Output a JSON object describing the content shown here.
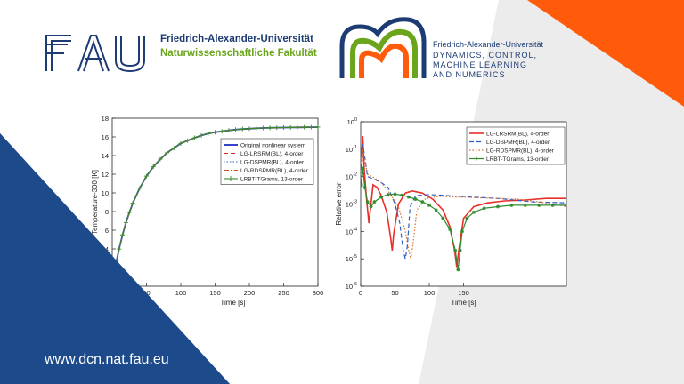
{
  "colors": {
    "navy": "#1d4a8a",
    "orange": "#ff5b0b",
    "grey": "#e9e9ea",
    "fau_blue": "#1d3c73",
    "fau_green": "#6aa51b"
  },
  "header": {
    "fau_logo": "FAU",
    "fau_name": "Friedrich-Alexander-Universität",
    "fau_faculty": "Naturwissenschaftliche Fakultät",
    "dcn_name": "Friedrich-Alexander-Universität",
    "dcn_lines": [
      "DYNAMICS, CONTROL,",
      "MACHINE LEARNING",
      "AND NUMERICS"
    ]
  },
  "footer": {
    "url": "www.dcn.nat.fau.eu"
  },
  "chart_data": [
    {
      "type": "line",
      "xlabel": "Time [s]",
      "ylabel": "Temperature-300 [K]",
      "xlim": [
        0,
        300
      ],
      "ylim": [
        0,
        18
      ],
      "xticks": [
        50,
        100,
        150,
        200,
        250,
        300
      ],
      "yticks": [
        2,
        4,
        6,
        8,
        10,
        12,
        14,
        16,
        18
      ],
      "x": [
        0,
        5,
        10,
        15,
        20,
        25,
        30,
        40,
        50,
        60,
        70,
        80,
        90,
        100,
        110,
        120,
        130,
        140,
        150,
        160,
        170,
        180,
        190,
        200,
        210,
        220,
        230,
        240,
        250,
        260,
        270,
        280,
        290,
        300
      ],
      "series": [
        {
          "name": "Original nonlinear system",
          "color": "#1f2fbf",
          "style": "solid",
          "values": [
            0,
            2.24,
            3.98,
            5.5,
            6.8,
            7.9,
            8.9,
            10.5,
            11.8,
            12.8,
            13.6,
            14.3,
            14.8,
            15.3,
            15.6,
            15.9,
            16.15,
            16.35,
            16.5,
            16.6,
            16.7,
            16.78,
            16.84,
            16.88,
            16.92,
            16.95,
            16.97,
            16.99,
            17.0,
            17.01,
            17.02,
            17.03,
            17.04,
            17.05
          ]
        },
        {
          "name": "LG-LRSRM(BL), 4-order",
          "color": "#e02020",
          "style": "dash",
          "values": [
            0,
            2.24,
            3.98,
            5.5,
            6.8,
            7.9,
            8.9,
            10.5,
            11.8,
            12.8,
            13.6,
            14.3,
            14.8,
            15.3,
            15.6,
            15.9,
            16.15,
            16.35,
            16.5,
            16.6,
            16.7,
            16.78,
            16.84,
            16.88,
            16.92,
            16.95,
            16.97,
            16.99,
            17.0,
            17.01,
            17.02,
            17.03,
            17.04,
            17.05
          ]
        },
        {
          "name": "LG-DSPMR(BL), 4-order",
          "color": "#2a5fc8",
          "style": "dot",
          "values": [
            0,
            2.24,
            3.98,
            5.5,
            6.8,
            7.9,
            8.9,
            10.5,
            11.8,
            12.8,
            13.6,
            14.3,
            14.8,
            15.3,
            15.6,
            15.9,
            16.15,
            16.35,
            16.5,
            16.6,
            16.7,
            16.78,
            16.84,
            16.88,
            16.92,
            16.95,
            16.97,
            16.99,
            17.0,
            17.01,
            17.02,
            17.03,
            17.04,
            17.05
          ]
        },
        {
          "name": "LG-RDSPMR(BL), 4-order",
          "color": "#d0502a",
          "style": "dashdot",
          "values": [
            0,
            2.24,
            3.98,
            5.5,
            6.8,
            7.9,
            8.9,
            10.5,
            11.8,
            12.8,
            13.6,
            14.3,
            14.8,
            15.3,
            15.6,
            15.9,
            16.15,
            16.35,
            16.5,
            16.6,
            16.7,
            16.78,
            16.84,
            16.88,
            16.92,
            16.95,
            16.97,
            16.99,
            17.0,
            17.01,
            17.02,
            17.03,
            17.04,
            17.05
          ]
        },
        {
          "name": "LRBT-TGrams, 13-order",
          "color": "#3a8a2a",
          "style": "plus",
          "values": [
            0,
            2.24,
            3.98,
            5.5,
            6.8,
            7.9,
            8.9,
            10.5,
            11.8,
            12.8,
            13.6,
            14.3,
            14.8,
            15.3,
            15.6,
            15.9,
            16.15,
            16.35,
            16.5,
            16.6,
            16.7,
            16.78,
            16.84,
            16.88,
            16.92,
            16.95,
            16.97,
            16.99,
            17.0,
            17.01,
            17.02,
            17.03,
            17.04,
            17.05
          ]
        }
      ],
      "legend": "top-right",
      "grid": false
    },
    {
      "type": "line",
      "xlabel": "Time [s]",
      "ylabel": "Relative error",
      "yscale": "log",
      "xlim": [
        0,
        300
      ],
      "ylim": [
        1e-06,
        1
      ],
      "xticks": [
        0,
        50,
        100,
        150
      ],
      "yticks": [
        {
          "value": 1e-06,
          "base": "10",
          "exp": "-6"
        },
        {
          "value": 1e-05,
          "base": "10",
          "exp": "-5"
        },
        {
          "value": 0.0001,
          "base": "10",
          "exp": "-4"
        },
        {
          "value": 0.001,
          "base": "10",
          "exp": "-3"
        },
        {
          "value": 0.01,
          "base": "10",
          "exp": "-2"
        },
        {
          "value": 0.1,
          "base": "10",
          "exp": "-1"
        },
        {
          "value": 1,
          "base": "10",
          "exp": "0"
        }
      ],
      "series": [
        {
          "name": "LG-LRSRM(BL), 4-order",
          "color": "#e8302a",
          "style": "solid",
          "x": [
            1,
            3,
            5,
            8,
            12,
            18,
            24,
            30,
            38,
            44,
            46,
            48,
            55,
            65,
            75,
            90,
            105,
            120,
            130,
            137,
            140,
            143,
            150,
            165,
            185,
            210,
            240,
            270,
            300
          ],
          "y": [
            0.05,
            0.3,
            0.02,
            0.002,
            0.0002,
            0.005,
            0.004,
            0.002,
            0.0005,
            5e-05,
            2e-05,
            8e-05,
            0.001,
            0.0025,
            0.003,
            0.0025,
            0.0015,
            0.0006,
            0.00015,
            2e-05,
            5e-06,
            2e-05,
            0.0003,
            0.0008,
            0.0011,
            0.0013,
            0.0014,
            0.0016,
            0.0016
          ]
        },
        {
          "name": "LG-DSPMR(BL), 4-order",
          "color": "#2a5fc8",
          "style": "dash",
          "x": [
            1,
            3,
            6,
            10,
            20,
            30,
            40,
            50,
            57,
            62,
            65,
            68,
            72,
            80,
            100,
            130,
            160,
            200,
            250,
            300
          ],
          "y": [
            0.02,
            0.15,
            0.05,
            0.01,
            0.008,
            0.006,
            0.004,
            0.001,
            0.0002,
            2e-05,
            1e-05,
            3e-05,
            0.0008,
            0.002,
            0.0022,
            0.002,
            0.0018,
            0.0016,
            0.0012,
            0.0011
          ]
        },
        {
          "name": "LG-RDSPMR(BL), 4-order",
          "color": "#d87030",
          "style": "dot",
          "x": [
            1,
            3,
            6,
            10,
            20,
            30,
            40,
            55,
            65,
            70,
            73,
            76,
            82,
            95,
            115,
            140,
            170,
            200,
            230,
            260,
            290,
            300
          ],
          "y": [
            0.01,
            0.1,
            0.04,
            0.012,
            0.009,
            0.006,
            0.003,
            0.0008,
            0.0001,
            2e-05,
            1e-05,
            3e-05,
            0.0006,
            0.0016,
            0.0019,
            0.0018,
            0.0017,
            0.0016,
            0.0015,
            0.0012,
            0.0009,
            0.0008
          ]
        },
        {
          "name": "LRBT-TGrams, 13-order",
          "color": "#2e8b2e",
          "style": "star",
          "x": [
            1,
            3,
            6,
            10,
            15,
            20,
            30,
            40,
            50,
            60,
            70,
            80,
            90,
            100,
            110,
            120,
            130,
            138,
            142,
            145,
            148,
            155,
            165,
            180,
            200,
            220,
            240,
            260,
            280,
            300
          ],
          "y": [
            0.005,
            0.02,
            0.004,
            0.0012,
            0.0008,
            0.0012,
            0.0018,
            0.0022,
            0.0023,
            0.0021,
            0.0018,
            0.0015,
            0.0012,
            0.0009,
            0.0006,
            0.0003,
            0.00012,
            2e-05,
            4e-06,
            2e-05,
            0.0001,
            0.0003,
            0.0005,
            0.0007,
            0.0008,
            0.0009,
            0.0009,
            0.0009,
            0.0009,
            0.0009
          ]
        }
      ],
      "legend": "top-right",
      "grid": false
    }
  ]
}
